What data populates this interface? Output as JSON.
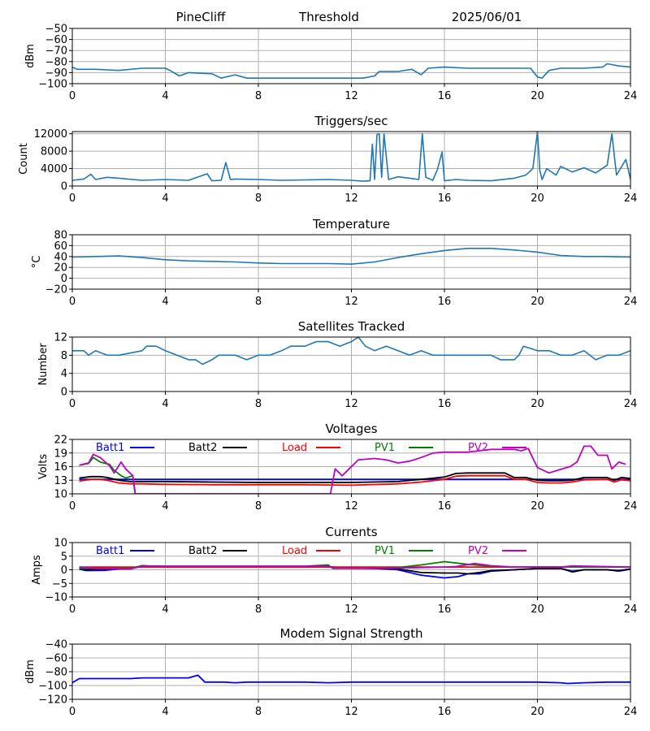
{
  "header": {
    "station": "PineCliff",
    "mode": "Threshold",
    "date": "2025/06/01"
  },
  "chart_data": [
    {
      "id": "signal",
      "type": "line",
      "title": "",
      "xlabel": "",
      "ylabel": "dBm",
      "xlim": [
        0,
        24
      ],
      "ylim": [
        -100,
        -50
      ],
      "xticks": [
        0,
        4,
        8,
        12,
        16,
        20,
        24
      ],
      "yticks": [
        -100,
        -90,
        -80,
        -70,
        -60,
        -50
      ],
      "grid": true,
      "series": [
        {
          "color": "#1f77b4",
          "x": [
            0,
            0.2,
            1,
            2,
            3,
            4,
            4.2,
            4.6,
            5,
            6,
            6.4,
            7,
            7.5,
            8,
            10,
            12,
            12.5,
            13,
            13.2,
            14,
            14.6,
            15,
            15.3,
            16,
            17,
            18,
            19,
            19.4,
            19.7,
            20,
            20.2,
            20.5,
            21,
            22,
            22.8,
            23,
            23.5,
            24
          ],
          "y": [
            -85,
            -87,
            -87,
            -88,
            -86,
            -86,
            -88,
            -93,
            -90,
            -91,
            -95,
            -92,
            -95,
            -95,
            -95,
            -95,
            -95,
            -93,
            -89,
            -89,
            -87,
            -92,
            -86,
            -85,
            -86,
            -86,
            -86,
            -86,
            -86,
            -94,
            -95,
            -88,
            -86,
            -86,
            -85,
            -82,
            -84,
            -85
          ]
        }
      ]
    },
    {
      "id": "triggers",
      "type": "line",
      "title": "Triggers/sec",
      "xlabel": "",
      "ylabel": "Count",
      "xlim": [
        0,
        24
      ],
      "ylim": [
        0,
        12500
      ],
      "xticks": [
        0,
        4,
        8,
        12,
        16,
        20,
        24
      ],
      "yticks": [
        0,
        4000,
        8000,
        12000
      ],
      "grid": true,
      "series": [
        {
          "color": "#1f77b4",
          "x": [
            0,
            0.5,
            0.8,
            1,
            1.5,
            2,
            3,
            4,
            5,
            5.8,
            6,
            6.4,
            6.6,
            6.8,
            7,
            8,
            9,
            10,
            11,
            12,
            12.5,
            12.8,
            12.9,
            13,
            13.1,
            13.2,
            13.3,
            13.4,
            13.6,
            14,
            14.5,
            14.9,
            15.05,
            15.2,
            15.5,
            15.7,
            15.9,
            16,
            16.5,
            17,
            18,
            19,
            19.5,
            19.8,
            20,
            20.1,
            20.2,
            20.4,
            20.8,
            21,
            21.5,
            22,
            22.5,
            23,
            23.2,
            23.4,
            23.8,
            24
          ],
          "y": [
            1300,
            1600,
            2700,
            1500,
            2000,
            1800,
            1300,
            1500,
            1300,
            2800,
            1200,
            1300,
            5400,
            1500,
            1600,
            1500,
            1300,
            1400,
            1500,
            1300,
            1100,
            1200,
            9600,
            1500,
            11800,
            12000,
            2000,
            12000,
            1500,
            2100,
            1800,
            1500,
            12000,
            2000,
            1300,
            3800,
            7800,
            1200,
            1500,
            1300,
            1200,
            1800,
            2500,
            4000,
            12500,
            3500,
            1500,
            4000,
            2500,
            4500,
            3200,
            4200,
            3000,
            4800,
            12000,
            2500,
            6100,
            1500
          ]
        }
      ]
    },
    {
      "id": "temperature",
      "type": "line",
      "title": "Temperature",
      "xlabel": "",
      "ylabel": "°C",
      "xlim": [
        0,
        24
      ],
      "ylim": [
        -20,
        80
      ],
      "xticks": [
        0,
        4,
        8,
        12,
        16,
        20,
        24
      ],
      "yticks": [
        -20,
        0,
        20,
        40,
        60,
        80
      ],
      "grid": true,
      "series": [
        {
          "color": "#1f77b4",
          "x": [
            0,
            1,
            2,
            3,
            4,
            5,
            6,
            7,
            8,
            9,
            10,
            11,
            12,
            13,
            14,
            15,
            16,
            17,
            18,
            19,
            20,
            21,
            22,
            23,
            24
          ],
          "y": [
            39,
            40,
            41,
            38,
            34,
            32,
            31,
            30,
            28,
            27,
            27,
            27,
            26,
            30,
            38,
            45,
            51,
            55,
            55,
            52,
            48,
            42,
            40,
            40,
            39
          ]
        }
      ]
    },
    {
      "id": "satellites",
      "type": "line",
      "title": "Satellites Tracked",
      "xlabel": "",
      "ylabel": "Number",
      "xlim": [
        0,
        24
      ],
      "ylim": [
        0,
        12
      ],
      "xticks": [
        0,
        4,
        8,
        12,
        16,
        20,
        24
      ],
      "yticks": [
        0,
        4,
        8,
        12
      ],
      "grid": true,
      "series": [
        {
          "color": "#1f77b4",
          "x": [
            0,
            0.5,
            0.7,
            1,
            1.5,
            2,
            3,
            3.2,
            3.6,
            4,
            4.5,
            5,
            5.3,
            5.6,
            6,
            6.3,
            7,
            7.5,
            8,
            8.5,
            9,
            9.4,
            10,
            10.5,
            11,
            11.5,
            12,
            12.3,
            12.6,
            13,
            13.5,
            14,
            14.5,
            15,
            15.5,
            16,
            16.5,
            17,
            18,
            18.4,
            19,
            19.2,
            19.4,
            20,
            20.5,
            21,
            21.5,
            22,
            22.5,
            23,
            23.5,
            24
          ],
          "y": [
            9,
            9,
            8,
            9,
            8,
            8,
            9,
            10,
            10,
            9,
            8,
            7,
            7,
            6,
            7,
            8,
            8,
            7,
            8,
            8,
            9,
            10,
            10,
            11,
            11,
            10,
            11,
            12,
            10,
            9,
            10,
            9,
            8,
            9,
            8,
            8,
            8,
            8,
            8,
            7,
            7,
            8,
            10,
            9,
            9,
            8,
            8,
            9,
            7,
            8,
            8,
            9
          ]
        }
      ]
    },
    {
      "id": "voltages",
      "type": "line",
      "title": "Voltages",
      "xlabel": "",
      "ylabel": "Volts",
      "xlim": [
        0,
        24
      ],
      "ylim": [
        10,
        22
      ],
      "xticks": [
        0,
        4,
        8,
        12,
        16,
        20,
        24
      ],
      "yticks": [
        10,
        13,
        16,
        19,
        22
      ],
      "grid": true,
      "legend_position": "top",
      "series": [
        {
          "name": "Batt1",
          "color": "#0000ff",
          "x": [
            0.3,
            24
          ],
          "y": [
            13.2,
            13.2
          ]
        },
        {
          "name": "Batt2",
          "color": "#000000",
          "x": [
            0.3,
            0.8,
            1.2,
            1.5,
            2,
            2.5,
            3,
            4,
            6,
            8,
            10,
            12,
            14,
            15,
            15.6,
            16,
            16.5,
            17,
            18,
            18.6,
            19,
            19.5,
            20,
            20.5,
            21,
            21.5,
            22,
            23,
            23.3,
            23.6,
            24
          ],
          "y": [
            13.5,
            13.8,
            13.8,
            13.6,
            13,
            12.7,
            12.7,
            12.7,
            12.6,
            12.5,
            12.5,
            12.5,
            12.7,
            13.2,
            13.5,
            13.7,
            14.5,
            14.6,
            14.6,
            14.6,
            13.6,
            13.6,
            13.0,
            12.9,
            12.9,
            13.0,
            13.6,
            13.6,
            13.0,
            13.6,
            13.4
          ]
        },
        {
          "name": "Load",
          "color": "#ff0000",
          "x": [
            0.3,
            0.8,
            1.2,
            1.5,
            2,
            2.5,
            3,
            4,
            6,
            8,
            10,
            12,
            14,
            15,
            16,
            16.5,
            17,
            18,
            18.6,
            19,
            19.5,
            20,
            20.5,
            21,
            21.5,
            22,
            23,
            23.3,
            23.6,
            24
          ],
          "y": [
            12.8,
            13.2,
            13.2,
            13,
            12.4,
            12.2,
            12.2,
            12.1,
            12,
            12,
            12,
            11.9,
            12.2,
            12.6,
            13.2,
            13.9,
            14.0,
            14.0,
            14.0,
            13.2,
            13.2,
            12.5,
            12.4,
            12.4,
            12.6,
            13.1,
            13.2,
            12.6,
            13.1,
            12.9
          ]
        },
        {
          "name": "PV1",
          "color": "#008000",
          "x": [
            0.3,
            0.7,
            0.9,
            1.2,
            1.6,
            1.8,
            2.1,
            2.3,
            2.6,
            2.7
          ],
          "y": [
            16.3,
            16.7,
            18.0,
            17.0,
            16.5,
            15.2,
            14.0,
            13.5,
            14.0,
            10.5
          ]
        },
        {
          "name": "PV2",
          "color": "#bf00bf",
          "x": [
            0.3,
            0.7,
            0.9,
            1.2,
            1.6,
            1.8,
            2.1,
            2.3,
            2.6,
            2.7,
            11.1,
            11.3,
            11.6,
            12,
            12.3,
            13,
            13.5,
            14,
            14.5,
            15,
            15.5,
            16,
            17,
            17.5,
            18,
            19,
            19.3,
            19.6,
            20,
            20.5,
            21,
            21.4,
            21.7,
            22,
            22.3,
            22.6,
            23,
            23.2,
            23.5,
            23.8
          ],
          "y": [
            16.3,
            16.8,
            18.7,
            18.0,
            16.2,
            14.6,
            17.0,
            15.5,
            14.0,
            10.0,
            10.0,
            15.5,
            14.0,
            16.0,
            17.5,
            17.8,
            17.5,
            16.8,
            17.2,
            18.0,
            19.0,
            19.2,
            19.2,
            19.5,
            19.8,
            19.8,
            19.5,
            20.0,
            15.8,
            14.6,
            15.4,
            16.0,
            17.0,
            20.5,
            20.5,
            18.5,
            18.5,
            15.5,
            17.0,
            16.5
          ]
        }
      ]
    },
    {
      "id": "currents",
      "type": "line",
      "title": "Currents",
      "xlabel": "",
      "ylabel": "Amps",
      "xlim": [
        0,
        24
      ],
      "ylim": [
        -10,
        10
      ],
      "xticks": [
        0,
        4,
        8,
        12,
        16,
        20,
        24
      ],
      "yticks": [
        -10,
        -5,
        0,
        5,
        10
      ],
      "grid": true,
      "legend_position": "top",
      "series": [
        {
          "name": "Batt1",
          "color": "#0000ff",
          "x": [
            0.3,
            0.6,
            1.4,
            2,
            2.5,
            3,
            4,
            10,
            11,
            12,
            13,
            14,
            15,
            16,
            16.6,
            17,
            17.5,
            18,
            19,
            20,
            21,
            21.5,
            22,
            23,
            23.5,
            24
          ],
          "y": [
            0.2,
            -0.3,
            -0.2,
            0.3,
            0.3,
            1.5,
            1.0,
            1.0,
            1.0,
            0.8,
            0.5,
            0,
            -2,
            -3,
            -2.5,
            -1.5,
            -1.5,
            -0.5,
            0,
            0.5,
            0.5,
            -0.5,
            0,
            0,
            -0.5,
            0.2
          ]
        },
        {
          "name": "Batt2",
          "color": "#000000",
          "x": [
            0.3,
            0.6,
            1.4,
            2,
            2.5,
            3,
            4,
            10,
            11,
            12,
            13,
            14,
            15,
            16,
            16.6,
            17,
            17.5,
            18,
            19,
            20,
            21,
            21.5,
            22,
            23,
            23.5,
            24
          ],
          "y": [
            0.5,
            0,
            0.2,
            0.5,
            0.5,
            1.5,
            1.0,
            1.0,
            1.0,
            0.8,
            0.5,
            0.3,
            -1,
            -1.2,
            -1.2,
            -1.5,
            -1.0,
            -0.3,
            0,
            0.5,
            0.5,
            -0.8,
            0,
            0,
            -0.3,
            0.3
          ]
        },
        {
          "name": "Load",
          "color": "#ff0000",
          "x": [
            0.3,
            24
          ],
          "y": [
            1.0,
            1.0
          ]
        },
        {
          "name": "PV1",
          "color": "#008000",
          "x": [
            0.3,
            1,
            2,
            2.5,
            3,
            4,
            10,
            11,
            11.2,
            13,
            14,
            15,
            16,
            17,
            18,
            19,
            20,
            24
          ],
          "y": [
            0.5,
            0.5,
            0.5,
            0.5,
            1.5,
            1.3,
            1.3,
            1.8,
            0.5,
            0.5,
            0.8,
            1.8,
            3.0,
            2.0,
            1.3,
            1.0,
            1.0,
            1.0
          ]
        },
        {
          "name": "PV2",
          "color": "#bf00bf",
          "x": [
            0.3,
            1,
            2,
            2.5,
            3,
            4,
            10,
            11,
            11.2,
            13,
            14,
            15,
            16,
            16.5,
            17.3,
            18,
            19,
            20,
            21,
            21.5,
            24
          ],
          "y": [
            1.0,
            0.5,
            0.4,
            0.3,
            1.3,
            1.3,
            1.3,
            1.3,
            0.6,
            0.5,
            0.6,
            0.8,
            1.0,
            1.2,
            2.3,
            1.5,
            1.0,
            1.0,
            1.0,
            1.4,
            1.0
          ]
        }
      ]
    },
    {
      "id": "modem",
      "type": "line",
      "title": "Modem Signal Strength",
      "xlabel": "",
      "ylabel": "dBm",
      "xlim": [
        0,
        24
      ],
      "ylim": [
        -120,
        -40
      ],
      "xticks": [
        0,
        4,
        8,
        12,
        16,
        20,
        24
      ],
      "yticks": [
        -120,
        -100,
        -80,
        -60,
        -40
      ],
      "grid": true,
      "series": [
        {
          "color": "#0000ff",
          "x": [
            0,
            0.3,
            1,
            2,
            2.5,
            3,
            4,
            5,
            5.4,
            5.7,
            6,
            6.5,
            7,
            7.5,
            8,
            9,
            10,
            11,
            12,
            14,
            16,
            18,
            19,
            20,
            21,
            21.3,
            22,
            23,
            24
          ],
          "y": [
            -96,
            -90,
            -90,
            -90,
            -90,
            -89,
            -89,
            -89,
            -85,
            -95,
            -95,
            -95,
            -96,
            -95,
            -95,
            -95,
            -95,
            -96,
            -95,
            -95,
            -95,
            -95,
            -95,
            -95,
            -96,
            -97,
            -96,
            -95,
            -95
          ]
        }
      ]
    }
  ]
}
